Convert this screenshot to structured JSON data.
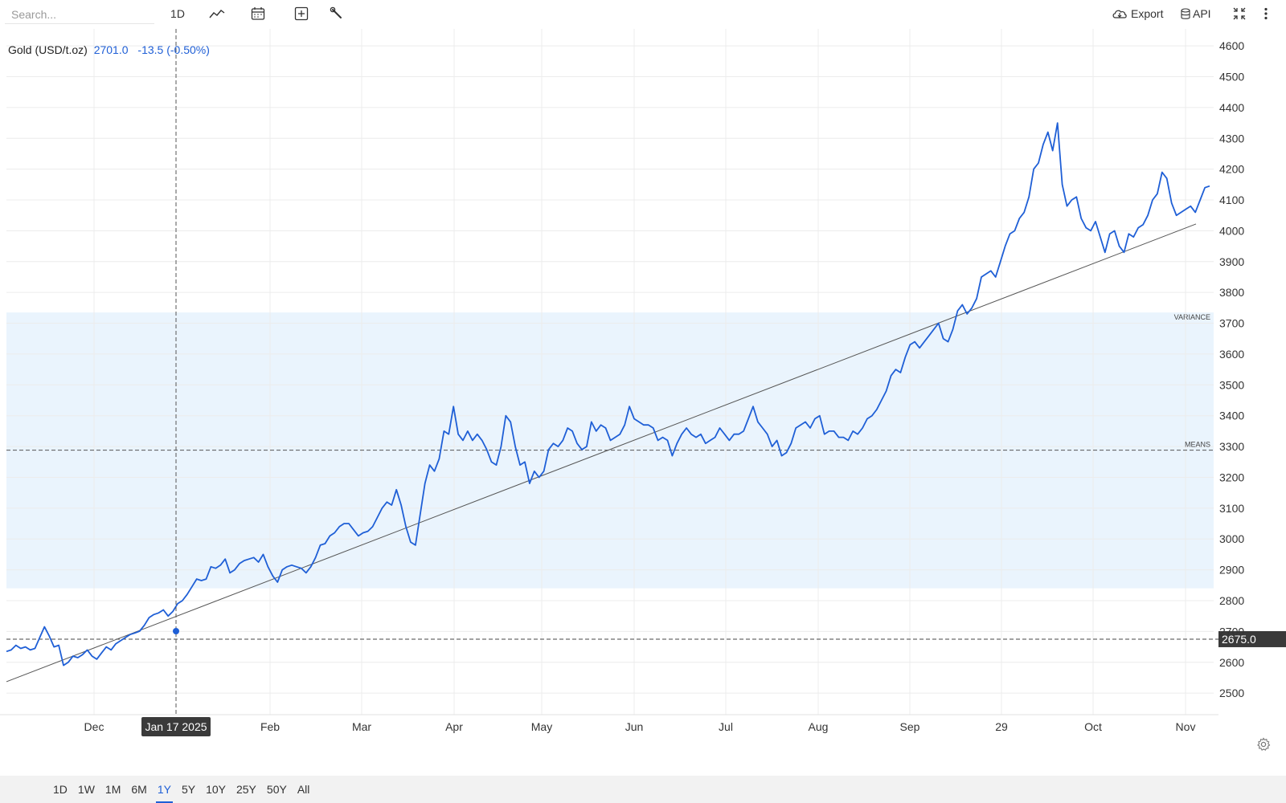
{
  "toolbar": {
    "search_placeholder": "Search...",
    "interval_label": "1D",
    "chart_type_icon": "line-chart-icon",
    "calendar_icon": "calendar-icon",
    "add_icon": "plus-square-icon",
    "tools_icon": "wrench-icon",
    "export_label": "Export",
    "export_icon": "cloud-download-icon",
    "api_label": "API",
    "api_icon": "database-icon",
    "fullscreen_icon": "collapse-icon",
    "more_icon": "vertical-dots-icon"
  },
  "legend": {
    "name": "Gold (USD/t.oz)",
    "value": "2701.0",
    "change": "-13.5 (-0.50%)"
  },
  "ranges": [
    "1D",
    "1W",
    "1M",
    "6M",
    "1Y",
    "5Y",
    "10Y",
    "25Y",
    "50Y",
    "All"
  ],
  "active_range": "1Y",
  "settings_icon": "gear-icon",
  "colors": {
    "line": "#1f5fd6",
    "band": "#eaf4fd",
    "trend": "#555555",
    "grid": "#ececec"
  },
  "chart_data": {
    "type": "line",
    "title": "",
    "series": [
      {
        "name": "Gold (USD/t.oz)",
        "y": [
          2635,
          2640,
          2655,
          2645,
          2650,
          2640,
          2645,
          2680,
          2715,
          2685,
          2650,
          2655,
          2590,
          2600,
          2620,
          2615,
          2625,
          2640,
          2620,
          2610,
          2630,
          2650,
          2640,
          2660,
          2670,
          2680,
          2690,
          2695,
          2701,
          2720,
          2745,
          2755,
          2760,
          2770,
          2750,
          2765,
          2790,
          2800,
          2820,
          2845,
          2870,
          2865,
          2870,
          2910,
          2905,
          2915,
          2935,
          2890,
          2900,
          2920,
          2930,
          2935,
          2940,
          2925,
          2950,
          2910,
          2880,
          2860,
          2900,
          2910,
          2915,
          2910,
          2905,
          2890,
          2910,
          2940,
          2980,
          2985,
          3010,
          3020,
          3040,
          3050,
          3050,
          3030,
          3010,
          3020,
          3025,
          3040,
          3070,
          3100,
          3120,
          3110,
          3160,
          3110,
          3040,
          2990,
          2980,
          3080,
          3180,
          3240,
          3220,
          3260,
          3350,
          3340,
          3430,
          3340,
          3320,
          3350,
          3320,
          3340,
          3320,
          3290,
          3250,
          3240,
          3300,
          3400,
          3380,
          3300,
          3240,
          3250,
          3180,
          3220,
          3200,
          3220,
          3290,
          3310,
          3300,
          3320,
          3360,
          3350,
          3310,
          3290,
          3300,
          3380,
          3350,
          3370,
          3360,
          3320,
          3330,
          3340,
          3370,
          3430,
          3390,
          3380,
          3370,
          3370,
          3360,
          3320,
          3330,
          3320,
          3270,
          3310,
          3340,
          3360,
          3340,
          3330,
          3340,
          3310,
          3320,
          3330,
          3360,
          3340,
          3320,
          3340,
          3340,
          3350,
          3390,
          3430,
          3380,
          3360,
          3340,
          3300,
          3320,
          3270,
          3280,
          3310,
          3360,
          3370,
          3380,
          3360,
          3390,
          3400,
          3340,
          3350,
          3350,
          3330,
          3330,
          3320,
          3350,
          3340,
          3360,
          3390,
          3400,
          3420,
          3450,
          3480,
          3530,
          3550,
          3540,
          3590,
          3630,
          3640,
          3620,
          3640,
          3660,
          3680,
          3700,
          3650,
          3640,
          3680,
          3740,
          3760,
          3730,
          3750,
          3780,
          3850,
          3860,
          3870,
          3850,
          3900,
          3950,
          3990,
          4000,
          4040,
          4060,
          4110,
          4200,
          4220,
          4280,
          4320,
          4260,
          4350,
          4150,
          4080,
          4100,
          4110,
          4040,
          4010,
          4000,
          4030,
          3980,
          3930,
          3990,
          4000,
          3950,
          3930,
          3990,
          3980,
          4010,
          4020,
          4050,
          4100,
          4120,
          4190,
          4170,
          4090,
          4050,
          4060,
          4070,
          4080,
          4060,
          4100,
          4140,
          4145
        ]
      }
    ],
    "x_labels": [
      "Dec",
      "Feb",
      "Mar",
      "Apr",
      "May",
      "Jun",
      "Jul",
      "Aug",
      "Sep",
      "29",
      "Oct",
      "Nov"
    ],
    "y_ticks": [
      2500,
      2600,
      2700,
      2800,
      2900,
      3000,
      3100,
      3200,
      3300,
      3400,
      3500,
      3600,
      3700,
      3800,
      3900,
      4000,
      4100,
      4200,
      4300,
      4400,
      4500,
      4600
    ],
    "ylim": [
      2430,
      4655
    ],
    "last_price": "2675.0",
    "last_price_value": 2675,
    "mean": 3288,
    "mean_label": "MEANS",
    "variance_band": [
      2840,
      3735
    ],
    "variance_label": "VARIANCE",
    "trendline": [
      2537,
      4022
    ],
    "crosshair_date": "Jan 17 2025",
    "crosshair_value": 2701,
    "grid": true,
    "legend_position": "top-left"
  }
}
